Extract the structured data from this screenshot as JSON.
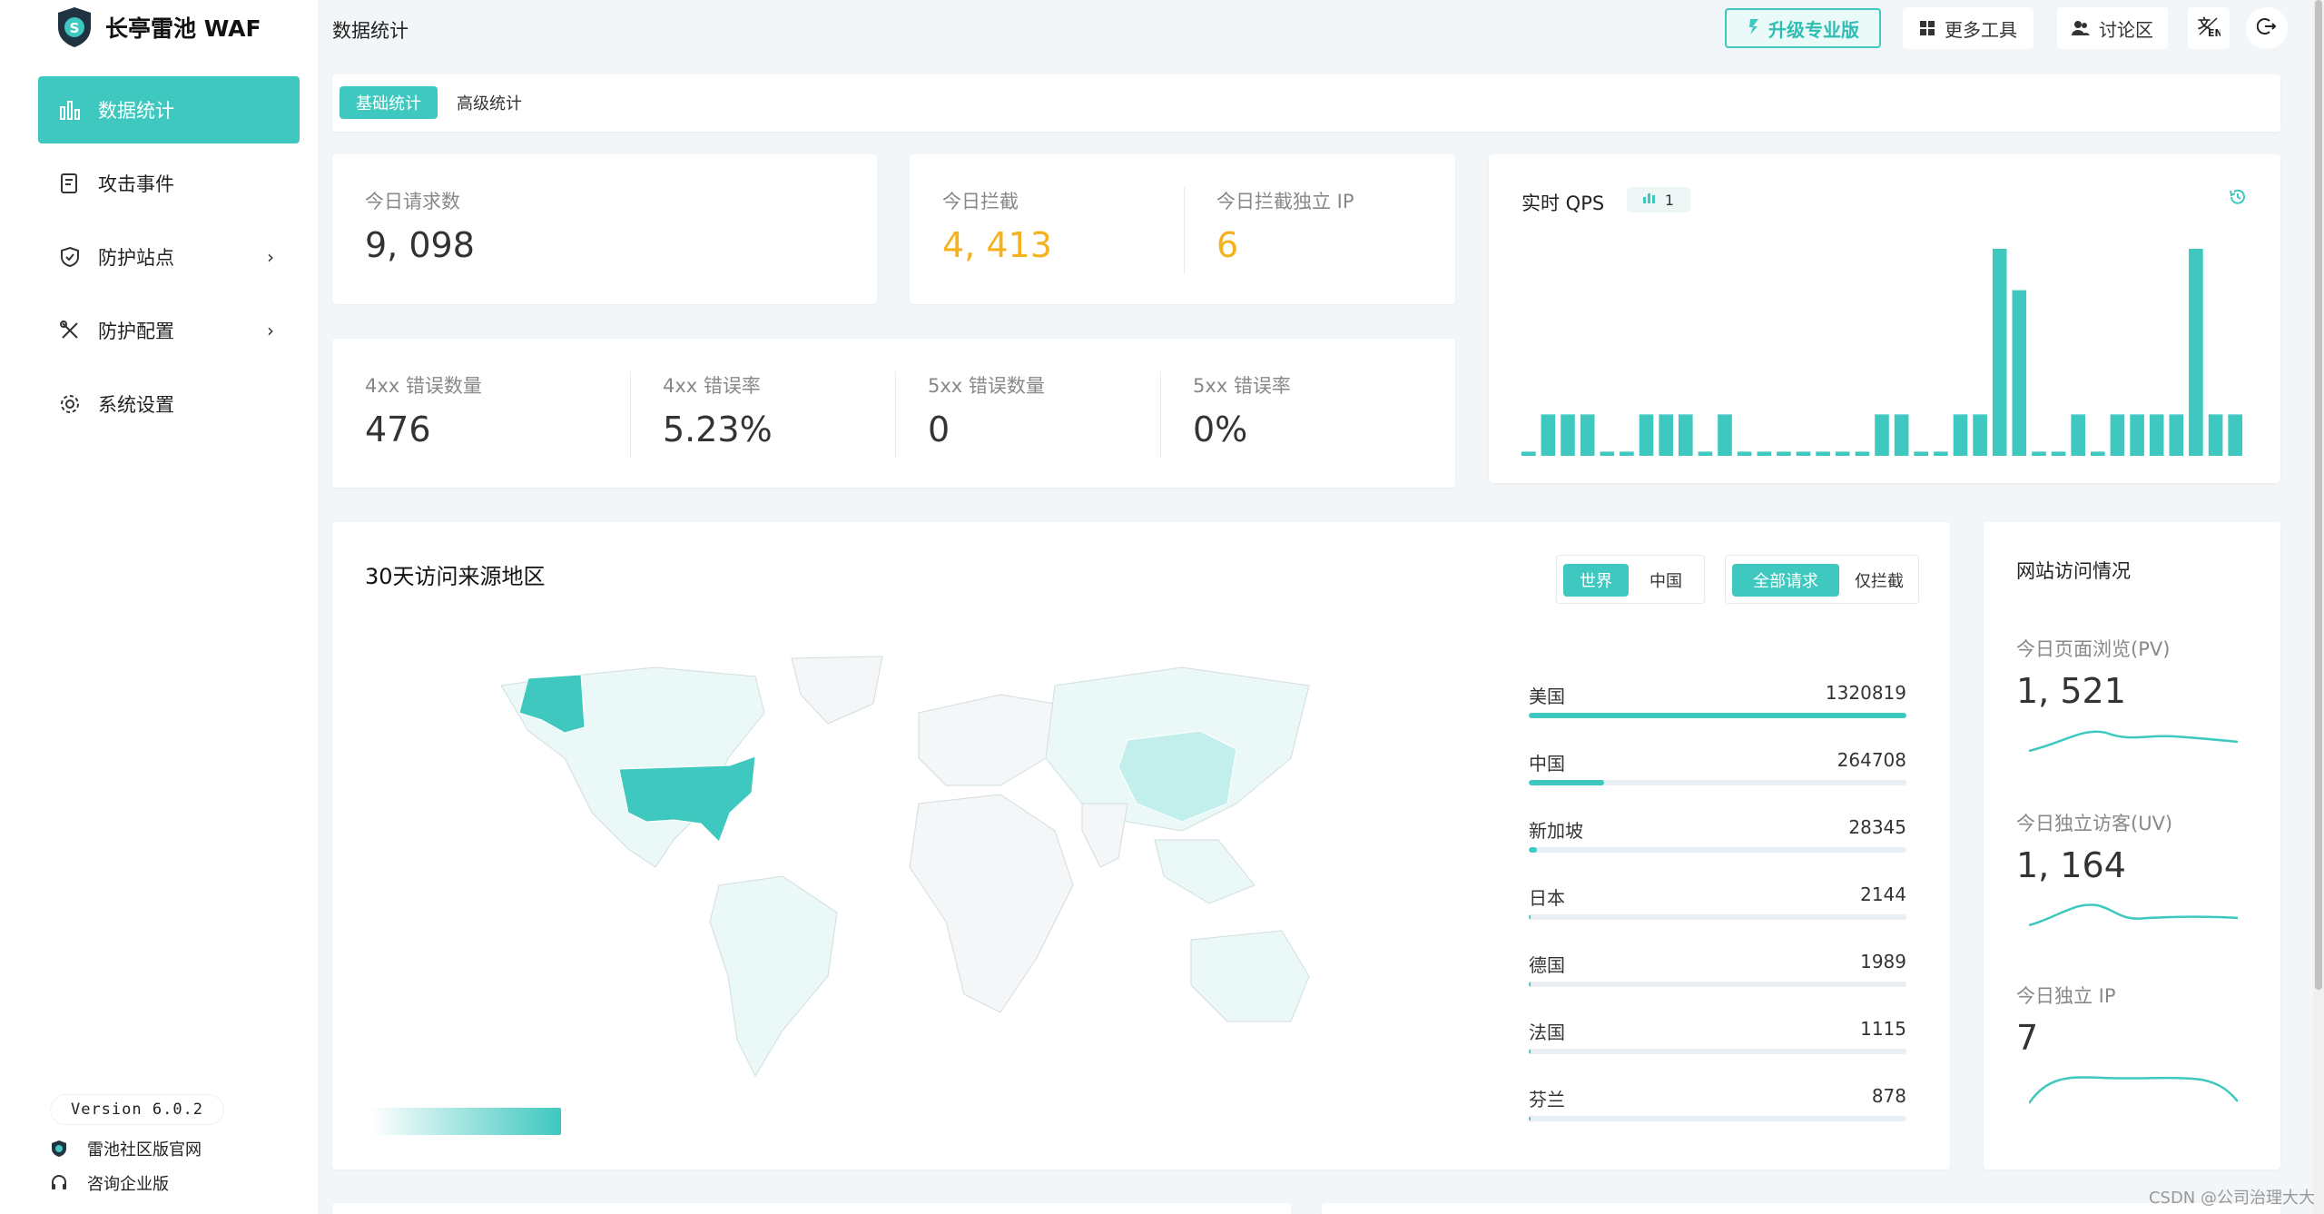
{
  "app": {
    "name": "长亭雷池 WAF",
    "version": "Version 6.0.2"
  },
  "sidebar": {
    "items": [
      {
        "label": "数据统计",
        "icon": "bar-chart-icon",
        "active": true
      },
      {
        "label": "攻击事件",
        "icon": "log-icon"
      },
      {
        "label": "防护站点",
        "icon": "shield-icon",
        "chevron": "›"
      },
      {
        "label": "防护配置",
        "icon": "tools-icon",
        "chevron": "›"
      },
      {
        "label": "系统设置",
        "icon": "gear-icon"
      }
    ],
    "footer": [
      {
        "label": "雷池社区版官网",
        "icon": "shield-logo-icon"
      },
      {
        "label": "咨询企业版",
        "icon": "headset-icon"
      }
    ]
  },
  "topbar": {
    "title": "数据统计",
    "upgrade": "升级专业版",
    "more_tools": "更多工具",
    "forum": "讨论区"
  },
  "tabs": {
    "basic": "基础统计",
    "advanced": "高级统计"
  },
  "stats": {
    "requests_label": "今日请求数",
    "requests_value": "9, 098",
    "blocked_label": "今日拦截",
    "blocked_value": "4, 413",
    "blocked_ip_label": "今日拦截独立 IP",
    "blocked_ip_value": "6",
    "err4_count_label": "4xx 错误数量",
    "err4_count_value": "476",
    "err4_rate_label": "4xx 错误率",
    "err4_rate_value": "5.23%",
    "err5_count_label": "5xx 错误数量",
    "err5_count_value": "0",
    "err5_rate_label": "5xx 错误率",
    "err5_rate_value": "0%"
  },
  "qps": {
    "title": "实时 QPS",
    "badge": "1",
    "color": "#3ec8bf",
    "values": [
      0.1,
      1,
      1,
      1,
      0.1,
      0.1,
      1,
      1,
      1,
      0.1,
      1,
      0.1,
      0.1,
      0.1,
      0.1,
      0.1,
      0.1,
      0.1,
      1,
      1,
      0.1,
      0.1,
      1,
      1,
      5,
      4,
      0.1,
      0.1,
      1,
      0.1,
      1,
      1,
      1,
      1,
      5,
      1,
      1
    ]
  },
  "map": {
    "title": "30天访问来源地区",
    "scope_world": "世界",
    "scope_china": "中国",
    "filter_all": "全部请求",
    "filter_blocked": "仅拦截",
    "regions": [
      {
        "name": "美国",
        "value": 1320819
      },
      {
        "name": "中国",
        "value": 264708
      },
      {
        "name": "新加坡",
        "value": 28345
      },
      {
        "name": "日本",
        "value": 2144
      },
      {
        "name": "德国",
        "value": 1989
      },
      {
        "name": "法国",
        "value": 1115
      },
      {
        "name": "芬兰",
        "value": 878
      }
    ]
  },
  "site_visits": {
    "title": "网站访问情况",
    "pv_label": "今日页面浏览(PV)",
    "pv_value": "1, 521",
    "uv_label": "今日独立访客(UV)",
    "uv_value": "1, 164",
    "ip_label": "今日独立 IP",
    "ip_value": "7"
  },
  "watermark": "CSDN @公司治理大大",
  "colors": {
    "accent": "#3ec8bf",
    "orange": "#f5b21f"
  }
}
